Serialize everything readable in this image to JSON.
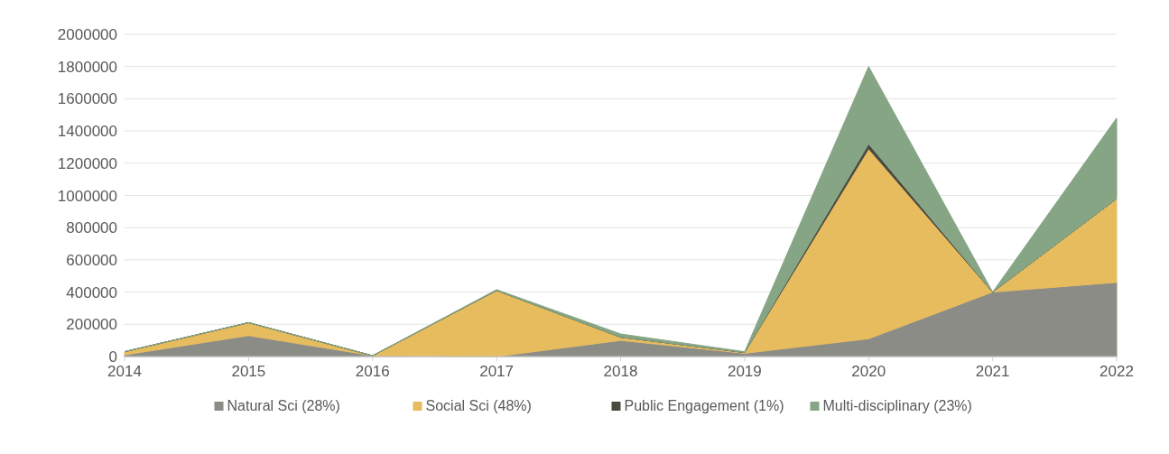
{
  "chart_data": {
    "type": "area",
    "stacked": true,
    "x": [
      2014,
      2015,
      2016,
      2017,
      2018,
      2019,
      2020,
      2021,
      2022
    ],
    "xlim": [
      2014,
      2022
    ],
    "xticks": [
      2014,
      2015,
      2016,
      2017,
      2018,
      2019,
      2020,
      2021,
      2022
    ],
    "ylim": [
      0,
      2000000
    ],
    "yticks": [
      0,
      200000,
      400000,
      600000,
      800000,
      1000000,
      1200000,
      1400000,
      1600000,
      1800000,
      2000000
    ],
    "grid": "y",
    "legend": "bottom",
    "series": [
      {
        "name": "Natural Sci (28%)",
        "color": "#8c8c87",
        "values": [
          10000,
          130000,
          5000,
          0,
          100000,
          20000,
          110000,
          400000,
          460000
        ]
      },
      {
        "name": "Social Sci (48%)",
        "color": "#e6bc5f",
        "values": [
          20000,
          80000,
          0,
          410000,
          20000,
          5000,
          1180000,
          0,
          520000
        ]
      },
      {
        "name": "Public Engagement (1%)",
        "color": "#4a4a40",
        "values": [
          0,
          0,
          0,
          0,
          0,
          0,
          30000,
          0,
          0
        ]
      },
      {
        "name": "Multi-disciplinary (23%)",
        "color": "#86a585",
        "values": [
          0,
          0,
          0,
          5000,
          20000,
          5000,
          480000,
          0,
          500000
        ]
      }
    ]
  }
}
